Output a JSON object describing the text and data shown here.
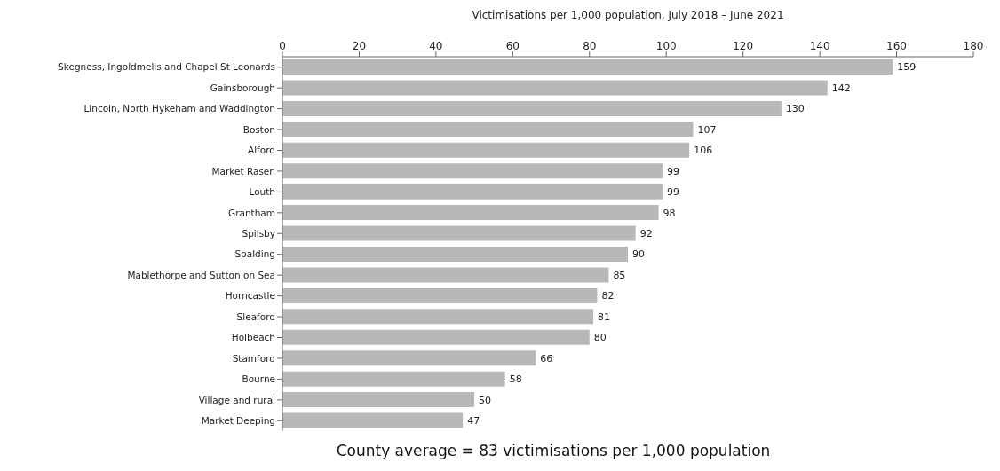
{
  "chart_data": {
    "type": "bar",
    "orientation": "horizontal",
    "xlabel": "Victimisations per 1,000 population, July 2018 – June 2021",
    "categories": [
      "Skegness, Ingoldmells and Chapel St Leonards",
      "Gainsborough",
      "Lincoln, North Hykeham and Waddington",
      "Boston",
      "Alford",
      "Market Rasen",
      "Louth",
      "Grantham",
      "Spilsby",
      "Spalding",
      "Mablethorpe and Sutton on Sea",
      "Horncastle",
      "Sleaford",
      "Holbeach",
      "Stamford",
      "Bourne",
      "Village and rural",
      "Market Deeping"
    ],
    "values": [
      159,
      142,
      130,
      107,
      106,
      99,
      99,
      98,
      92,
      90,
      85,
      82,
      81,
      80,
      66,
      58,
      50,
      47
    ],
    "color": "#b8b8b8",
    "xlim": [
      0,
      180
    ],
    "xticks": [
      0,
      20,
      40,
      60,
      80,
      100,
      120,
      140,
      160,
      180
    ],
    "grid": false,
    "legend": false,
    "data_labels": true,
    "annotations": [
      "County average = 83 victimisations per 1,000 population"
    ]
  }
}
